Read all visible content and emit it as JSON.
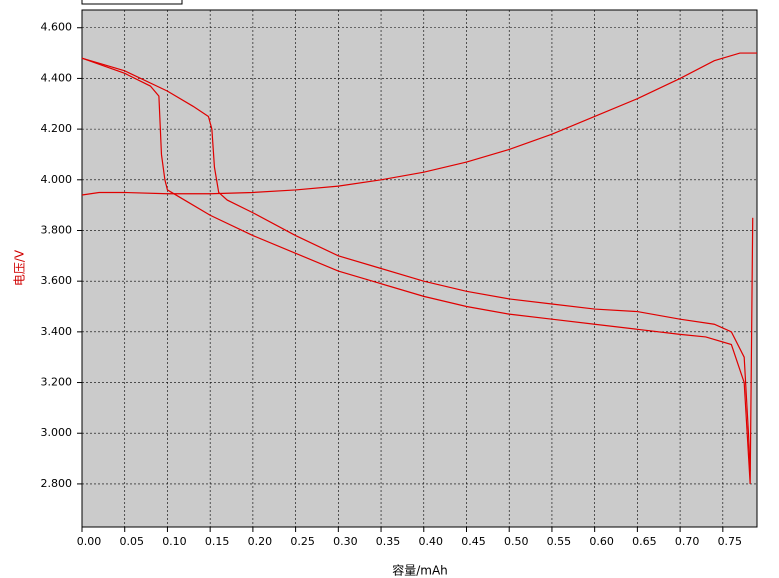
{
  "chart_data": {
    "type": "line",
    "x_label": "容量/mAh",
    "y_label": "电压/V",
    "xlim": [
      0,
      0.79
    ],
    "ylim": [
      2.63,
      4.67
    ],
    "grid": true,
    "xticks": [
      {
        "value": 0,
        "label": "0.00"
      },
      {
        "value": 0.05,
        "label": "0.05"
      },
      {
        "value": 0.1,
        "label": "0.10"
      },
      {
        "value": 0.15,
        "label": "0.15"
      },
      {
        "value": 0.2,
        "label": "0.20"
      },
      {
        "value": 0.25,
        "label": "0.25"
      },
      {
        "value": 0.3,
        "label": "0.30"
      },
      {
        "value": 0.35,
        "label": "0.35"
      },
      {
        "value": 0.4,
        "label": "0.40"
      },
      {
        "value": 0.45,
        "label": "0.45"
      },
      {
        "value": 0.5,
        "label": "0.50"
      },
      {
        "value": 0.55,
        "label": "0.55"
      },
      {
        "value": 0.6,
        "label": "0.60"
      },
      {
        "value": 0.65,
        "label": "0.65"
      },
      {
        "value": 0.7,
        "label": "0.70"
      },
      {
        "value": 0.75,
        "label": "0.75"
      }
    ],
    "yticks": [
      {
        "value": 2.8,
        "label": "2.800"
      },
      {
        "value": 3.0,
        "label": "3.000"
      },
      {
        "value": 3.2,
        "label": "3.200"
      },
      {
        "value": 3.4,
        "label": "3.400"
      },
      {
        "value": 3.6,
        "label": "3.600"
      },
      {
        "value": 3.8,
        "label": "3.800"
      },
      {
        "value": 4.0,
        "label": "4.000"
      },
      {
        "value": 4.2,
        "label": "4.200"
      },
      {
        "value": 4.4,
        "label": "4.400"
      },
      {
        "value": 4.6,
        "label": "4.600"
      }
    ],
    "series": [
      {
        "color": "#e00000",
        "x": [
          0,
          0.02,
          0.05,
          0.1,
          0.15,
          0.2,
          0.25,
          0.3,
          0.35,
          0.4,
          0.45,
          0.5,
          0.55,
          0.6,
          0.65,
          0.7,
          0.74,
          0.77,
          0.79
        ],
        "values": [
          3.94,
          3.95,
          3.95,
          3.945,
          3.945,
          3.95,
          3.96,
          3.975,
          4.0,
          4.03,
          4.07,
          4.12,
          4.18,
          4.25,
          4.32,
          4.4,
          4.47,
          4.5,
          4.5
        ]
      },
      {
        "color": "#e00000",
        "x": [
          0,
          0.05,
          0.08,
          0.09,
          0.093,
          0.097,
          0.1,
          0.12,
          0.15,
          0.2,
          0.25,
          0.3,
          0.35,
          0.4,
          0.45,
          0.5,
          0.55,
          0.6,
          0.65,
          0.7,
          0.73,
          0.76,
          0.775,
          0.782,
          0.784,
          0.785
        ],
        "values": [
          4.48,
          4.42,
          4.37,
          4.33,
          4.1,
          4.0,
          3.96,
          3.92,
          3.86,
          3.78,
          3.71,
          3.64,
          3.59,
          3.54,
          3.5,
          3.47,
          3.45,
          3.43,
          3.41,
          3.39,
          3.38,
          3.35,
          3.2,
          2.8,
          3.5,
          3.85
        ]
      },
      {
        "color": "#e00000",
        "x": [
          0,
          0.05,
          0.1,
          0.13,
          0.148,
          0.152,
          0.155,
          0.16,
          0.17,
          0.2,
          0.25,
          0.3,
          0.35,
          0.4,
          0.45,
          0.5,
          0.55,
          0.6,
          0.65,
          0.7,
          0.74,
          0.76,
          0.775,
          0.78,
          0.782
        ],
        "values": [
          4.48,
          4.43,
          4.35,
          4.29,
          4.25,
          4.2,
          4.05,
          3.95,
          3.92,
          3.87,
          3.78,
          3.7,
          3.65,
          3.6,
          3.56,
          3.53,
          3.51,
          3.49,
          3.48,
          3.45,
          3.43,
          3.4,
          3.3,
          3.0,
          2.85
        ]
      }
    ]
  }
}
